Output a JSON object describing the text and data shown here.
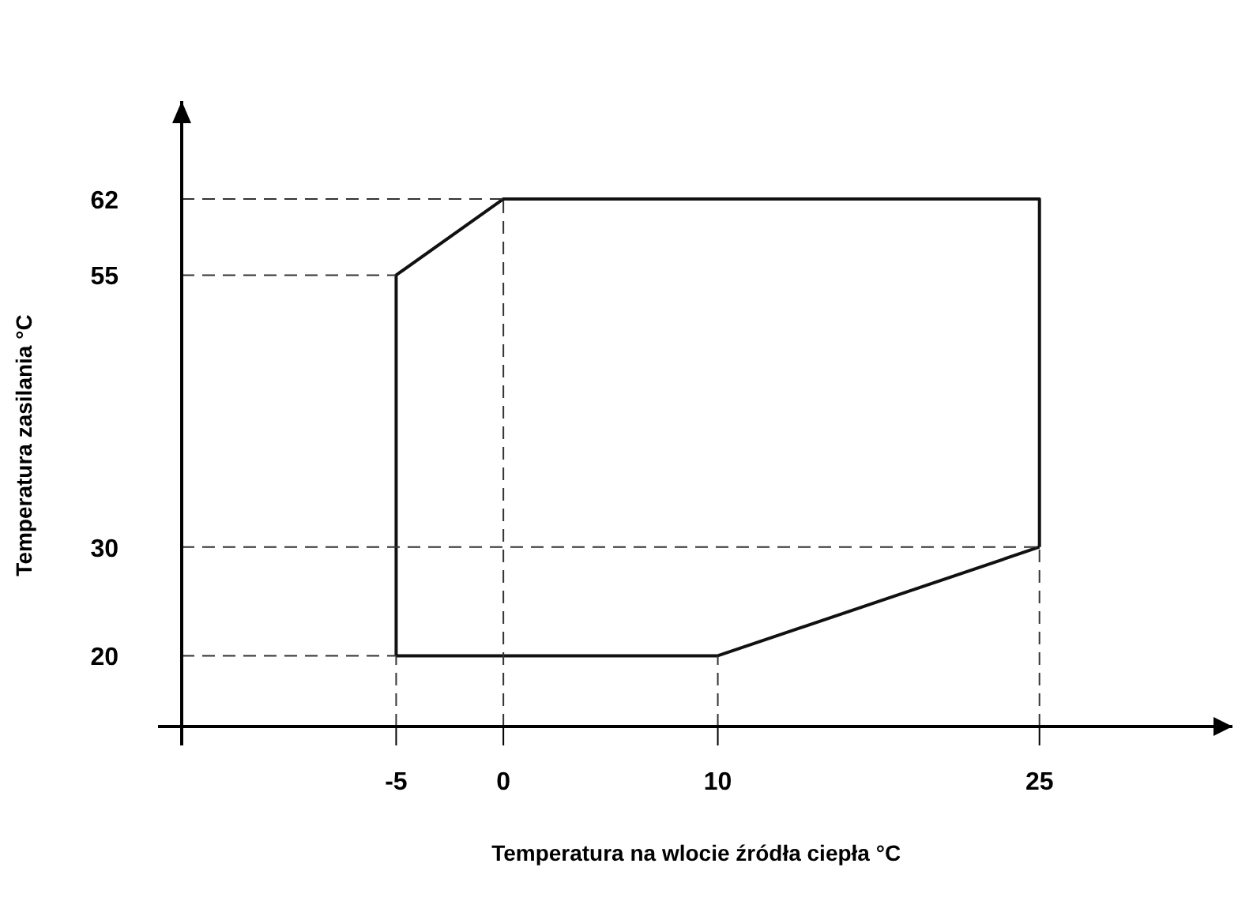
{
  "chart_data": {
    "type": "line",
    "xlabel": "Temperatura na wlocie źródła ciepła °C",
    "ylabel": "Temperatura zasilania °C",
    "series": [
      {
        "color": "#111111",
        "x": [
          -5,
          -5,
          0,
          25,
          25
        ],
        "values": [
          20,
          55,
          62,
          62,
          30
        ],
        "line_style": "solid"
      },
      {
        "color": "#111111",
        "x": [
          -5,
          10,
          25
        ],
        "values": [
          20,
          20,
          30
        ],
        "line_style": "solid"
      },
      {
        "color": "#333333",
        "x": [
          -5,
          -5
        ],
        "values": [
          13.5,
          20
        ],
        "line_style": "dashed"
      },
      {
        "color": "#333333",
        "x": [
          0,
          0
        ],
        "values": [
          13.5,
          62
        ],
        "line_style": "dashed"
      },
      {
        "color": "#333333",
        "x": [
          10,
          10
        ],
        "values": [
          13.5,
          20
        ],
        "line_style": "dashed"
      },
      {
        "color": "#333333",
        "x": [
          25,
          25
        ],
        "values": [
          13.5,
          30
        ],
        "line_style": "dashed"
      },
      {
        "color": "#333333",
        "x": [
          -15,
          0
        ],
        "values": [
          62,
          62
        ],
        "line_style": "dashed"
      },
      {
        "color": "#333333",
        "x": [
          -15,
          -5
        ],
        "values": [
          55,
          55
        ],
        "line_style": "dashed"
      },
      {
        "color": "#333333",
        "x": [
          -15,
          25
        ],
        "values": [
          30,
          30
        ],
        "line_style": "dashed"
      },
      {
        "color": "#333333",
        "x": [
          -15,
          -5
        ],
        "values": [
          20,
          20
        ],
        "line_style": "dashed"
      }
    ],
    "xlim": [
      -15,
      34
    ],
    "ylim": [
      13.5,
      71
    ],
    "xticks": [
      -5,
      0,
      10,
      25
    ],
    "yticks": [
      20,
      30,
      55,
      62
    ],
    "marker": "none"
  }
}
